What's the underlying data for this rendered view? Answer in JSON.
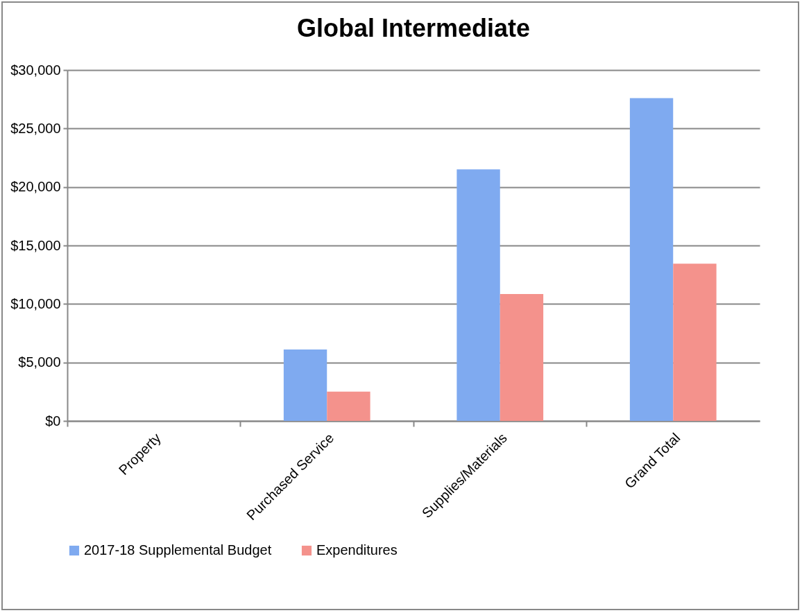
{
  "chart_data": {
    "type": "bar",
    "title": "Global Intermediate",
    "categories": [
      "Property",
      "Purchased Service",
      "Supplies/Materials",
      "Grand Total",
      null
    ],
    "series": [
      {
        "name": "2017-18 Supplemental Budget",
        "color": "#7faaf0",
        "values": [
          0,
          6100,
          21500,
          27600,
          null
        ]
      },
      {
        "name": "Expenditures",
        "color": "#f4928c",
        "values": [
          0,
          2500,
          10850,
          13450,
          null
        ]
      }
    ],
    "ylim": [
      0,
      30000
    ],
    "yticks": [
      {
        "value": 0,
        "label": "$0"
      },
      {
        "value": 5000,
        "label": "$5,000"
      },
      {
        "value": 10000,
        "label": "$10,000"
      },
      {
        "value": 15000,
        "label": "$15,000"
      },
      {
        "value": 20000,
        "label": "$20,000"
      },
      {
        "value": 25000,
        "label": "$25,000"
      },
      {
        "value": 30000,
        "label": "$30,000"
      }
    ],
    "grid": "y",
    "legend": "bottom"
  }
}
